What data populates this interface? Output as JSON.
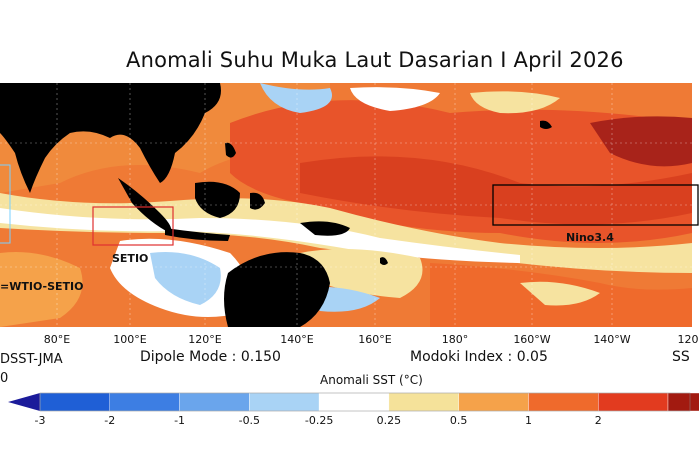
{
  "title": "Anomali Suhu Muka Laut Dasarian I April 2026",
  "regions": {
    "setio": "SETIO",
    "wtio_setio": "=WTIO-SETIO",
    "nino34": "Nino3.4"
  },
  "lon_ticks": [
    "80°E",
    "100°E",
    "120°E",
    "140°E",
    "160°E",
    "180°",
    "160°W",
    "140°W",
    "120"
  ],
  "source": "DSST-JMA",
  "source_line2": "0",
  "dipole_mode": "Dipole Mode : 0.150",
  "modoki_index": "Modoki Index : 0.05",
  "right_partial": "SS",
  "colorbar": {
    "label": "Anomali SST (°C)",
    "ticks": [
      "-3",
      "-2",
      "-1",
      "-0.5",
      "-0.25",
      "0.25",
      "0.5",
      "1",
      "2"
    ],
    "colors": [
      "#1f5fd6",
      "#3d7ee3",
      "#6aa5ec",
      "#a9d3f5",
      "#ffffff",
      "#f5e29a",
      "#f5a24a",
      "#ef6a2c",
      "#e23b1f",
      "#a21a10"
    ]
  }
}
